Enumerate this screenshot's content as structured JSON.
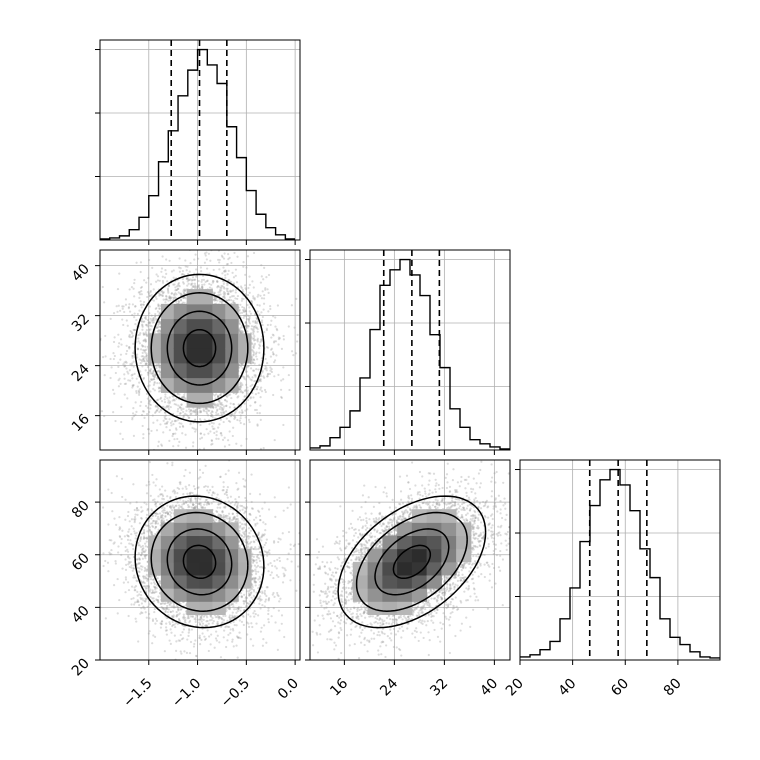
{
  "chart_data": {
    "type": "corner",
    "grid": true,
    "colors": {
      "line": "#000000",
      "grid": "#b0b0b0",
      "points": "#9a9a9a"
    },
    "params": [
      {
        "range": [
          -2.0,
          0.05
        ],
        "ticks": [
          -1.5,
          -1.0,
          -0.5,
          0.0
        ],
        "tick_labels": [
          "−1.5",
          "−1.0",
          "−0.5",
          "0.0"
        ],
        "quantiles": [
          -1.27,
          -0.98,
          -0.7
        ]
      },
      {
        "range": [
          10.5,
          42.5
        ],
        "ticks": [
          16,
          24,
          32,
          40
        ],
        "tick_labels": [
          "16",
          "24",
          "32",
          "40"
        ],
        "quantiles": [
          22.3,
          26.8,
          31.2
        ]
      },
      {
        "range": [
          20,
          96
        ],
        "ticks": [
          20,
          40,
          60,
          80
        ],
        "tick_labels": [
          "20",
          "40",
          "60",
          "80"
        ],
        "quantiles": [
          46.5,
          57.3,
          68.2
        ]
      }
    ],
    "histograms": [
      {
        "param": 0,
        "bin_edges": [
          -2.0,
          -1.9,
          -1.8,
          -1.7,
          -1.6,
          -1.5,
          -1.4,
          -1.3,
          -1.2,
          -1.1,
          -1.0,
          -0.9,
          -0.8,
          -0.7,
          -0.6,
          -0.5,
          -0.4,
          -0.3,
          -0.2,
          -0.1,
          0.0
        ],
        "counts": [
          1,
          2,
          4,
          10,
          22,
          43,
          76,
          106,
          140,
          165,
          185,
          170,
          152,
          110,
          80,
          48,
          25,
          12,
          5,
          1
        ]
      },
      {
        "param": 1,
        "bin_edges": [
          10.5,
          12.1,
          13.7,
          15.3,
          16.9,
          18.5,
          20.1,
          21.7,
          23.3,
          24.9,
          26.5,
          28.1,
          29.7,
          31.3,
          32.9,
          34.5,
          36.1,
          37.7,
          39.3,
          40.9,
          42.5
        ],
        "counts": [
          2,
          4,
          12,
          22,
          38,
          70,
          117,
          160,
          175,
          185,
          170,
          150,
          112,
          80,
          40,
          22,
          10,
          6,
          3,
          1
        ]
      },
      {
        "param": 2,
        "bin_edges": [
          20.0,
          23.8,
          27.6,
          31.4,
          35.2,
          39.0,
          42.8,
          46.6,
          50.4,
          54.2,
          58.0,
          61.8,
          65.6,
          69.4,
          73.2,
          77.0,
          80.8,
          84.6,
          88.4,
          92.2,
          96.0
        ],
        "counts": [
          3,
          5,
          10,
          18,
          40,
          70,
          115,
          150,
          175,
          185,
          170,
          145,
          108,
          80,
          40,
          22,
          15,
          8,
          3,
          2
        ]
      }
    ],
    "scatter_2d": [
      {
        "x_param": 0,
        "y_param": 1,
        "center": [
          -0.98,
          26.8
        ],
        "sd": [
          0.33,
          5.9
        ],
        "corr": 0.0,
        "samples": 5000
      },
      {
        "x_param": 0,
        "y_param": 2,
        "center": [
          -0.98,
          57.3
        ],
        "sd": [
          0.33,
          12.5
        ],
        "corr": -0.07,
        "samples": 5000
      },
      {
        "x_param": 1,
        "y_param": 2,
        "center": [
          26.8,
          57.3
        ],
        "sd": [
          5.9,
          12.5
        ],
        "corr": 0.45,
        "samples": 5000
      }
    ],
    "contour_levels_sigma": [
      0.5,
      1.0,
      1.5,
      2.0
    ]
  }
}
